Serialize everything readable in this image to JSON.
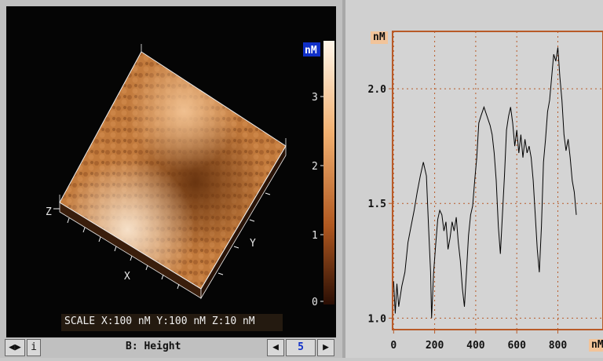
{
  "left": {
    "scale_text": "SCALE  X:100 nM Y:100 nM Z:10 nM",
    "axis_z": "Z",
    "axis_x": "X",
    "axis_y": "Y",
    "colorbar_unit": "nM",
    "colorbar_ticks": [
      "3",
      "2",
      "1",
      "0"
    ],
    "status": {
      "nav_glyph": "◀▶",
      "info_label": "i",
      "channel_label": "B: Height",
      "prev_glyph": "◀",
      "page_number": "5",
      "next_glyph": "▶"
    }
  },
  "chart_data": {
    "type": "line",
    "title": "",
    "xlabel": "nM",
    "ylabel": "nM",
    "xlim": [
      -5,
      1020
    ],
    "ylim": [
      0.95,
      2.25
    ],
    "xticks": [
      "0",
      "200",
      "400",
      "600",
      "800"
    ],
    "xtick_values": [
      0,
      200,
      400,
      600,
      800
    ],
    "yticks": [
      "1.0",
      "1.5",
      "2.0"
    ],
    "ytick_values": [
      1.0,
      1.5,
      2.0
    ],
    "grid": true,
    "x": [
      0,
      8,
      16,
      25,
      40,
      55,
      70,
      85,
      100,
      115,
      130,
      145,
      160,
      170,
      180,
      185,
      195,
      205,
      215,
      225,
      235,
      245,
      255,
      265,
      275,
      285,
      295,
      305,
      315,
      325,
      335,
      345,
      355,
      365,
      375,
      385,
      395,
      405,
      415,
      425,
      440,
      455,
      470,
      480,
      490,
      500,
      510,
      520,
      530,
      540,
      550,
      560,
      570,
      580,
      590,
      600,
      610,
      620,
      630,
      640,
      650,
      660,
      670,
      680,
      690,
      700,
      710,
      720,
      730,
      740,
      750,
      760,
      770,
      780,
      790,
      800,
      810,
      820,
      830,
      840,
      850,
      860,
      870,
      880,
      890
    ],
    "values": [
      1.16,
      1.02,
      1.15,
      1.05,
      1.14,
      1.2,
      1.33,
      1.4,
      1.47,
      1.55,
      1.62,
      1.68,
      1.62,
      1.4,
      1.2,
      1.0,
      1.2,
      1.32,
      1.43,
      1.47,
      1.45,
      1.38,
      1.42,
      1.3,
      1.35,
      1.42,
      1.38,
      1.44,
      1.33,
      1.25,
      1.13,
      1.05,
      1.2,
      1.36,
      1.45,
      1.49,
      1.6,
      1.7,
      1.85,
      1.88,
      1.92,
      1.88,
      1.84,
      1.8,
      1.72,
      1.6,
      1.4,
      1.28,
      1.45,
      1.62,
      1.82,
      1.88,
      1.92,
      1.85,
      1.75,
      1.82,
      1.72,
      1.8,
      1.7,
      1.78,
      1.72,
      1.75,
      1.7,
      1.6,
      1.45,
      1.3,
      1.2,
      1.4,
      1.68,
      1.78,
      1.9,
      1.95,
      2.05,
      2.15,
      2.12,
      2.18,
      2.05,
      1.95,
      1.8,
      1.73,
      1.78,
      1.7,
      1.6,
      1.55,
      1.45
    ]
  },
  "colors": {
    "grid": "#b85a28",
    "line": "#000000",
    "badge": "#f2c49a",
    "plot_bg": "#d4d4d4",
    "axis_text": "#111111"
  }
}
